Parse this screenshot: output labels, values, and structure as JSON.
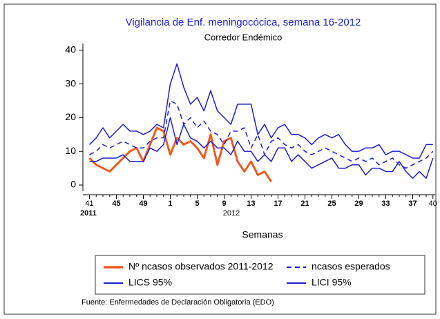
{
  "chart_data": {
    "type": "line",
    "title": "Vigilancia de Enf. meningocócica, semana 16-2012",
    "subtitle": "Corredor Endémico",
    "x_label": "Semanas",
    "year_labels": [
      "2011",
      "2012"
    ],
    "source": "Fuente: Enfermedades de Declaración Obligatoria (EDO)",
    "categories": [
      "41",
      null,
      null,
      null,
      "45",
      null,
      null,
      null,
      "49",
      null,
      null,
      null,
      "1",
      null,
      null,
      null,
      "5",
      null,
      null,
      null,
      "9",
      null,
      null,
      null,
      "13",
      null,
      null,
      null,
      "17",
      null,
      null,
      null,
      "21",
      null,
      null,
      null,
      "25",
      null,
      null,
      null,
      "29",
      null,
      null,
      null,
      "33",
      null,
      null,
      null,
      "37",
      null,
      null,
      "40"
    ],
    "ylim": [
      -2,
      42
    ],
    "yticks": [
      0,
      10,
      20,
      30,
      40
    ],
    "series": [
      {
        "name": "Nº ncasos observados 2011-2012",
        "color": "#f05a1e",
        "style": "solid",
        "width": 3,
        "values": [
          8,
          6,
          5,
          4,
          6,
          8,
          10,
          11,
          7,
          12,
          17,
          16,
          9,
          14,
          12,
          13,
          11,
          8,
          15,
          6,
          13,
          14,
          7,
          4,
          7,
          3,
          4,
          1,
          null,
          null,
          null,
          null,
          null,
          null,
          null,
          null,
          null,
          null,
          null,
          null,
          null,
          null,
          null,
          null,
          null,
          null,
          null,
          null,
          null,
          null,
          null,
          null
        ]
      },
      {
        "name": "ncasos esperados",
        "color": "#1c1cd4",
        "style": "dashed",
        "width": 1.5,
        "values": [
          9,
          10,
          12,
          11,
          12,
          13,
          12,
          11,
          11,
          13,
          14,
          14,
          25,
          24,
          18,
          20,
          17,
          19,
          16,
          15,
          12,
          16,
          16,
          17,
          11,
          15,
          9,
          13,
          14,
          12,
          11,
          12,
          10,
          9,
          10,
          11,
          10,
          9,
          8,
          7,
          8,
          7,
          8,
          6,
          7,
          8,
          6,
          5,
          6,
          7,
          8,
          10
        ]
      },
      {
        "name": "LICS 95%",
        "color": "#1c1cd4",
        "style": "solid",
        "width": 1.5,
        "values": [
          12,
          14,
          17,
          14,
          16,
          18,
          16,
          16,
          15,
          16,
          18,
          17,
          30,
          36,
          29,
          24,
          26,
          22,
          28,
          22,
          20,
          18,
          24,
          24,
          24,
          15,
          18,
          14,
          17,
          18,
          15,
          15,
          14,
          12,
          14,
          15,
          14,
          15,
          12,
          10,
          10,
          11,
          11,
          12,
          9,
          10,
          10,
          9,
          8,
          8,
          12,
          12
        ]
      },
      {
        "name": "LICI 95%",
        "color": "#1c1cd4",
        "style": "solid",
        "width": 1.5,
        "values": [
          7,
          7,
          8,
          8,
          8,
          9,
          7,
          7,
          7,
          11,
          10,
          12,
          20,
          12,
          18,
          14,
          13,
          11,
          13,
          11,
          11,
          9,
          13,
          10,
          10,
          7,
          9,
          7,
          11,
          11,
          7,
          9,
          7,
          5,
          6,
          7,
          8,
          5,
          5,
          6,
          6,
          3,
          5,
          5,
          4,
          4,
          7,
          4,
          2,
          4,
          2,
          8
        ]
      }
    ]
  }
}
